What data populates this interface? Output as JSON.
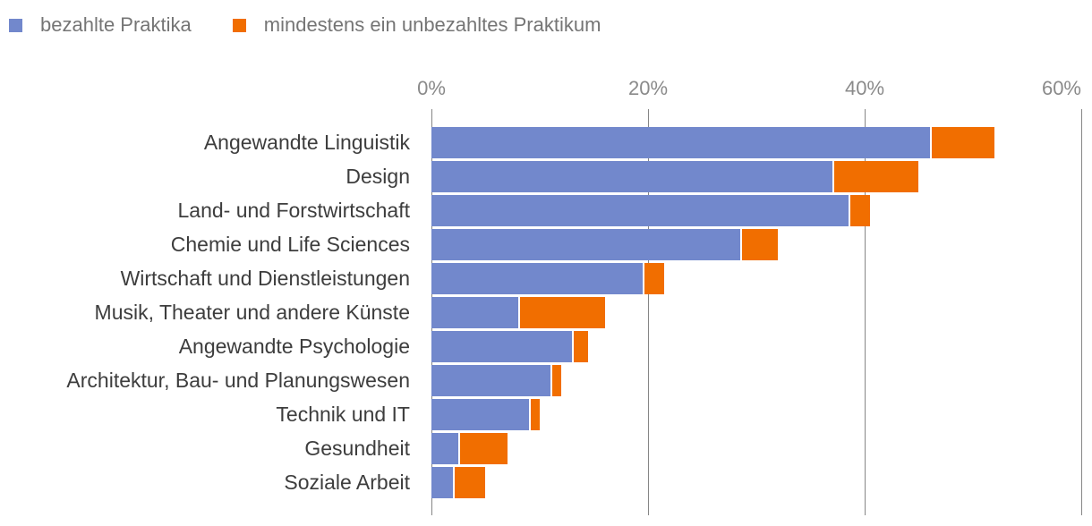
{
  "legend": {
    "items": [
      {
        "label": "bezahlte Praktika",
        "color": "#7288CC"
      },
      {
        "label": "mindestens ein unbezahltes Praktikum",
        "color": "#F16E00"
      }
    ]
  },
  "chart_data": {
    "type": "bar",
    "orientation": "horizontal",
    "stacked": true,
    "title": "",
    "categories": [
      "Angewandte Linguistik",
      "Design",
      "Land- und Forstwirtschaft",
      "Chemie und Life Sciences",
      "Wirtschaft und Dienstleistungen",
      "Musik, Theater und andere Künste",
      "Angewandte Psychologie",
      "Architektur, Bau- und Planungswesen",
      "Technik und IT",
      "Gesundheit",
      "Soziale Arbeit"
    ],
    "series": [
      {
        "name": "bezahlte Praktika",
        "color": "#7288CC",
        "values": [
          46,
          37,
          38.5,
          28.5,
          19.5,
          8,
          13,
          11,
          9,
          2.5,
          2
        ]
      },
      {
        "name": "mindestens ein unbezahltes Praktikum",
        "color": "#F16E00",
        "values": [
          6,
          8,
          2,
          3.5,
          2,
          8,
          1.5,
          1,
          1,
          4.5,
          3
        ]
      }
    ],
    "x_axis": {
      "tick_labels": [
        "0%",
        "20%",
        "40%",
        "60%"
      ],
      "tick_values": [
        0,
        20,
        40,
        60
      ],
      "min": 0,
      "max": 60
    },
    "grid": true,
    "legend_position": "top-left"
  },
  "style": {
    "background": "#FFFFFF",
    "bar_blue": "#7288CC",
    "bar_orange": "#F16E00",
    "gridline_color": "#868686",
    "axis_label_color": "#8A8A8A",
    "category_label_color": "#3D3D3D",
    "legend_text_color": "#757575"
  }
}
